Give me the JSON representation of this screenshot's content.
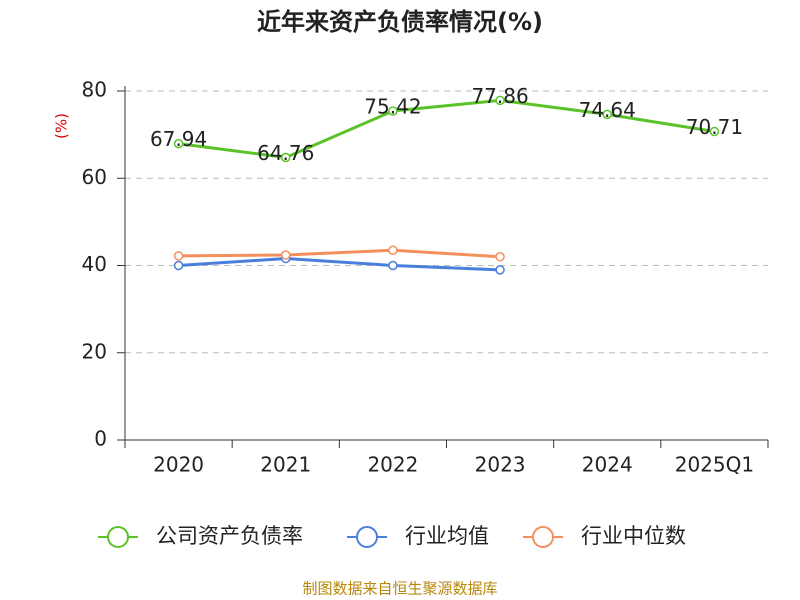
{
  "chart_data": {
    "type": "line",
    "title": "近年来资产负债率情况(%)",
    "y_label": "(%)",
    "source": "制图数据来自恒生聚源数据库",
    "categories": [
      "2020",
      "2021",
      "2022",
      "2023",
      "2024",
      "2025Q1"
    ],
    "series": [
      {
        "name": "公司资产负债率",
        "color": "#5bc32a",
        "values": [
          67.94,
          64.76,
          75.42,
          77.86,
          74.64,
          70.71
        ],
        "show_labels": true
      },
      {
        "name": "行业均值",
        "color": "#4a7fdc",
        "values": [
          40.0,
          41.6,
          40.0,
          39.0,
          null,
          null
        ],
        "show_labels": false
      },
      {
        "name": "行业中位数",
        "color": "#f4905c",
        "values": [
          42.2,
          42.4,
          43.5,
          42.0,
          null,
          null
        ],
        "show_labels": false
      }
    ],
    "ylim": [
      0,
      80
    ],
    "yticks": [
      0,
      20,
      40,
      60,
      80
    ],
    "grid": true
  }
}
